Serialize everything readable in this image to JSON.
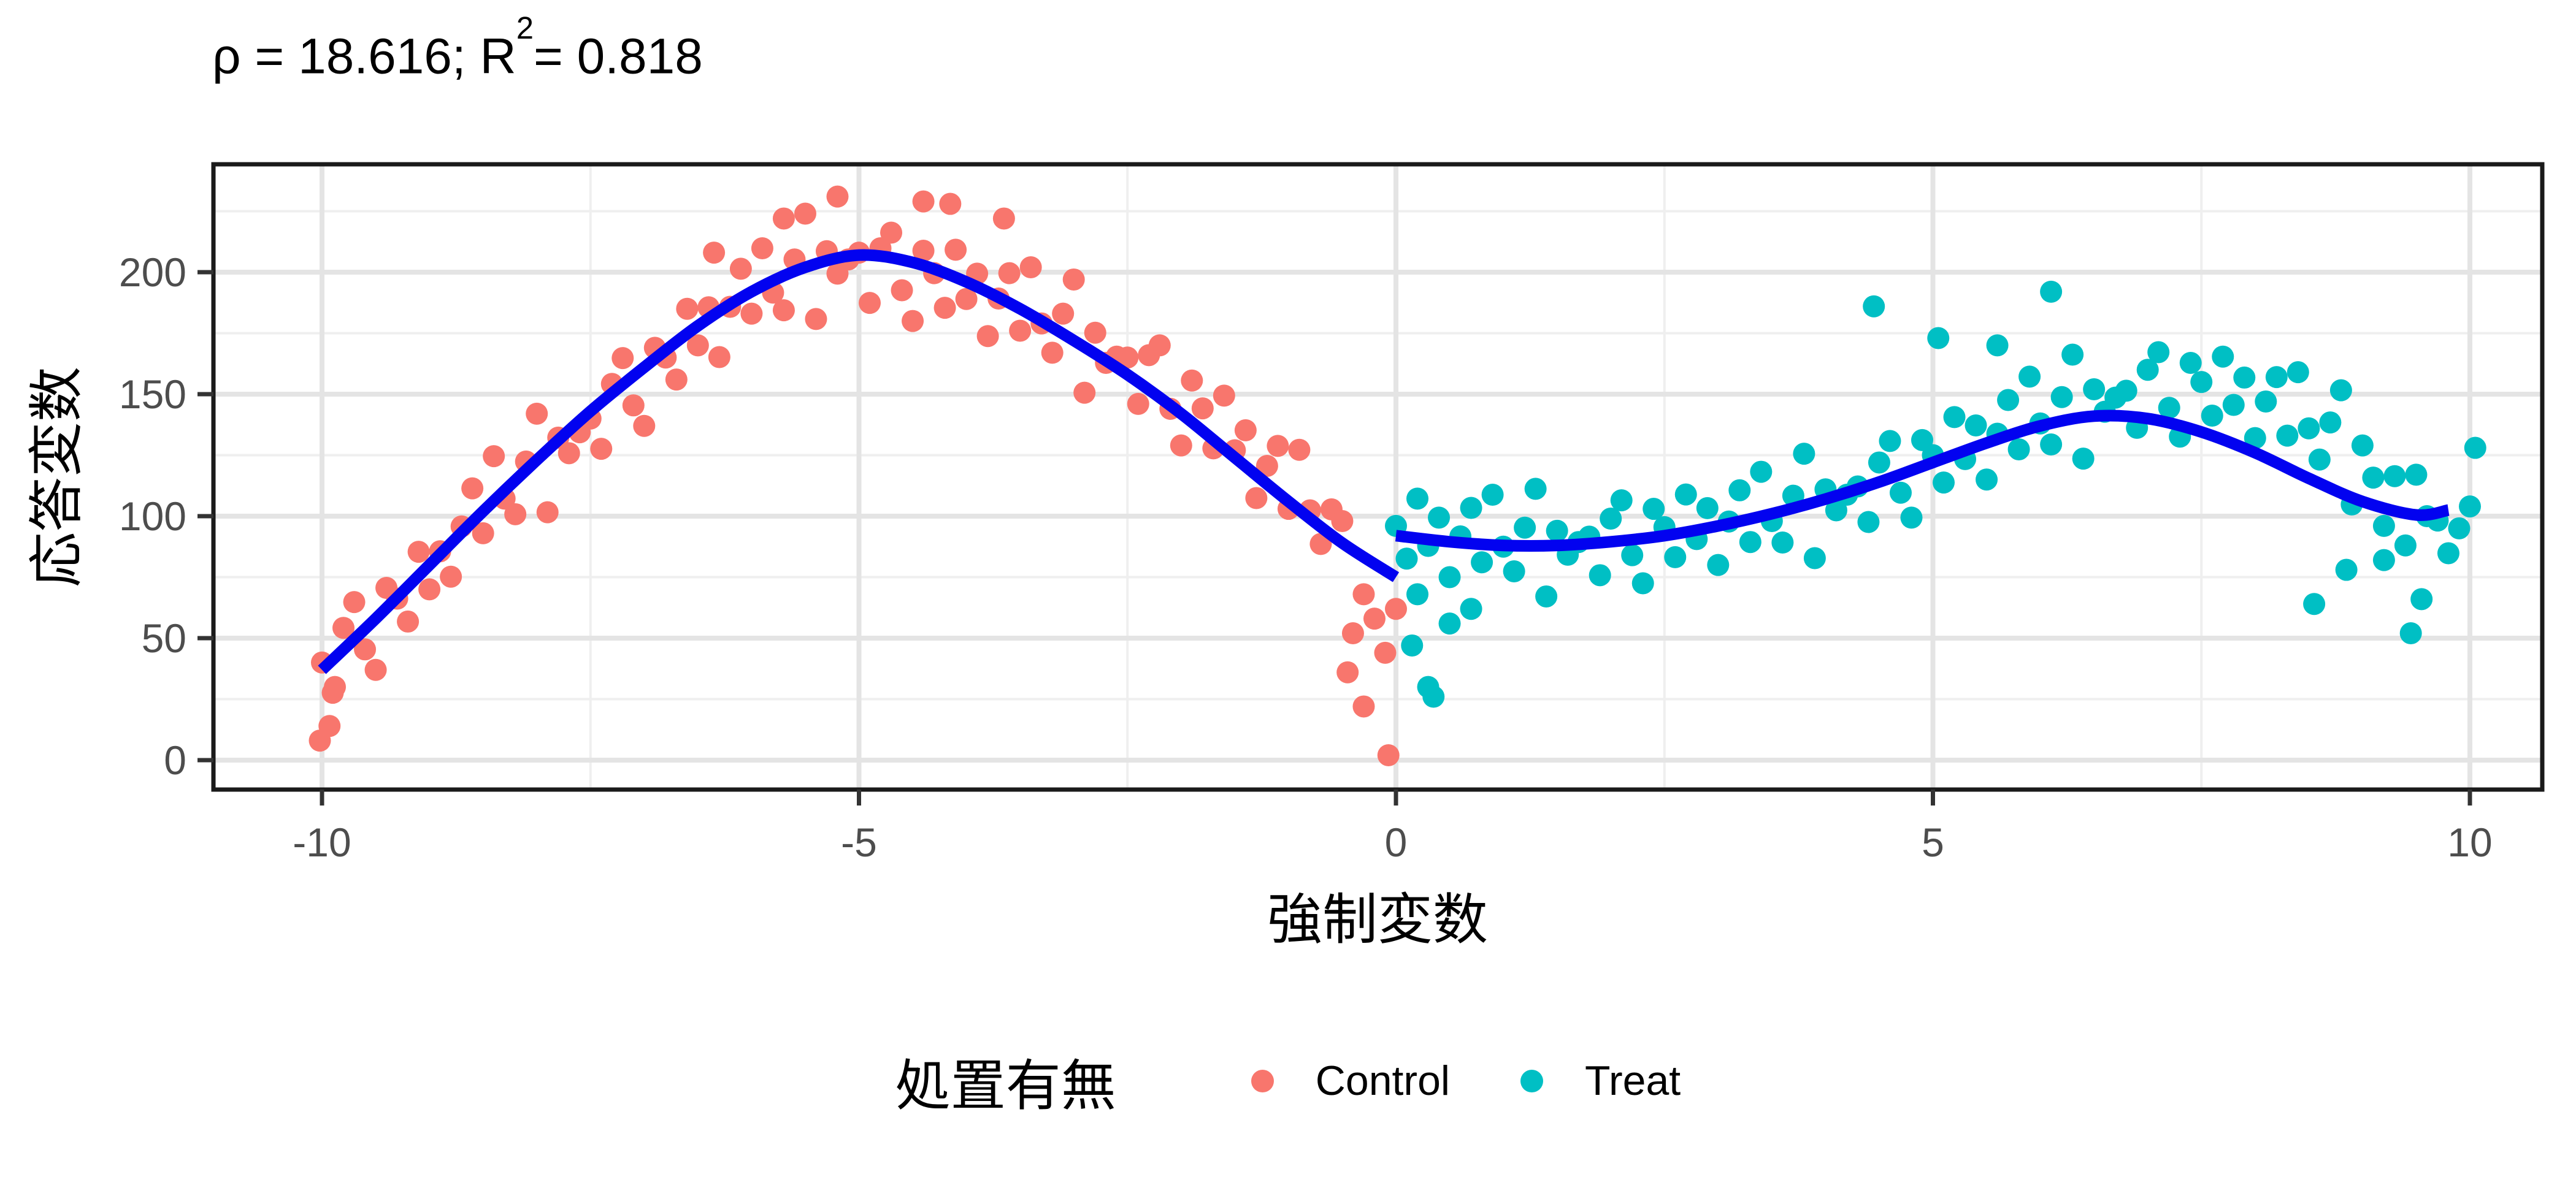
{
  "title": {
    "prefix": "ρ = 18.616; R",
    "sup": "2",
    "suffix": "= 0.818"
  },
  "axes": {
    "x": {
      "label": "強制変数",
      "ticks": [
        -10,
        -5,
        0,
        5,
        10
      ],
      "minor": [
        -7.5,
        -2.5,
        2.5,
        7.5
      ]
    },
    "y": {
      "label": "応答変数",
      "ticks": [
        0,
        50,
        100,
        150,
        200
      ],
      "minor": [
        25,
        75,
        125,
        175,
        225
      ]
    }
  },
  "legend": {
    "title": "処置有無",
    "items": [
      {
        "label": "Control",
        "color": "#F8766D"
      },
      {
        "label": "Treat",
        "color": "#00BFC4"
      }
    ]
  },
  "style": {
    "curve_color": "#0202F0",
    "grid_major": "#E4E4E4",
    "grid_minor": "#EFEFEF",
    "panel_border": "#1a1a1a",
    "tick_color": "#333333",
    "tick_label_color": "#4D4D4D"
  },
  "chart_data": {
    "type": "scatter",
    "title": "ρ = 18.616; R² = 0.818",
    "xlabel": "強制変数",
    "ylabel": "応答変数",
    "xlim": [
      -11.0,
      10.6
    ],
    "ylim": [
      -12,
      244
    ],
    "grid": true,
    "legend_title": "処置有無",
    "legend_position": "bottom",
    "discontinuity_x": 0,
    "rho": 18.616,
    "r_squared": 0.818,
    "series": [
      {
        "name": "Control",
        "kind": "points",
        "color": "#F8766D",
        "x": [
          -10.0,
          -9.9,
          -9.8,
          -9.7,
          -9.6,
          -9.5,
          -9.4,
          -9.3,
          -9.2,
          -9.1,
          -9.0,
          -8.9,
          -8.8,
          -8.7,
          -8.6,
          -8.5,
          -8.4,
          -8.3,
          -8.2,
          -8.1,
          -8.0,
          -7.9,
          -7.8,
          -7.7,
          -7.6,
          -7.5,
          -7.4,
          -7.3,
          -7.2,
          -7.1,
          -7.0,
          -6.9,
          -6.8,
          -6.7,
          -6.6,
          -6.5,
          -6.4,
          -6.3,
          -6.2,
          -6.1,
          -6.0,
          -5.9,
          -5.8,
          -5.7,
          -5.6,
          -5.5,
          -5.4,
          -5.3,
          -5.2,
          -5.1,
          -5.0,
          -4.9,
          -4.8,
          -4.7,
          -4.6,
          -4.5,
          -4.4,
          -4.3,
          -4.2,
          -4.1,
          -4.0,
          -3.9,
          -3.8,
          -3.7,
          -3.6,
          -3.5,
          -3.4,
          -3.3,
          -3.2,
          -3.1,
          -3.0,
          -2.9,
          -2.8,
          -2.7,
          -2.6,
          -2.5,
          -2.4,
          -2.3,
          -2.2,
          -2.1,
          -2.0,
          -1.9,
          -1.8,
          -1.7,
          -1.6,
          -1.5,
          -1.4,
          -1.3,
          -1.2,
          -1.1,
          -1.0,
          -0.9,
          -0.8,
          -0.7,
          -0.6,
          -0.5,
          -0.4,
          -0.3,
          -0.2,
          -0.1,
          0.0,
          -10.02,
          -9.93,
          -9.88,
          -6.35,
          -5.7,
          -5.2,
          -4.4,
          -4.15,
          -3.65,
          -0.45,
          -0.3,
          -0.07
        ],
        "y": [
          40,
          27.6,
          54.2,
          64.8,
          45.4,
          37,
          70.6,
          66.2,
          56.8,
          85.4,
          70,
          85.6,
          75.2,
          95.8,
          111.4,
          93,
          124.6,
          107.2,
          100.8,
          122.4,
          142,
          101.6,
          132.2,
          125.8,
          134.4,
          140,
          127.6,
          154.2,
          164.8,
          145.4,
          137,
          169,
          165,
          156,
          185,
          170,
          185.6,
          165.2,
          185.8,
          201.4,
          183,
          209.8,
          191.6,
          184.4,
          205.2,
          224,
          180.8,
          208.6,
          199.4,
          205.2,
          208,
          187.4,
          209.8,
          216.2,
          192.6,
          180,
          208.8,
          199.6,
          185.4,
          209.2,
          189,
          199.4,
          173.8,
          189.2,
          199.6,
          176,
          202,
          179,
          167,
          183,
          197,
          150.6,
          175.2,
          162.8,
          165.4,
          165,
          146,
          166,
          170,
          144,
          129,
          155.6,
          144.2,
          127.8,
          149.4,
          127,
          135.2,
          107.4,
          120.6,
          128.8,
          103,
          127.2,
          102.4,
          88.6,
          102.8,
          98,
          52,
          68,
          58,
          44,
          62,
          8,
          14,
          30,
          208,
          222,
          231,
          229,
          228,
          222,
          36,
          22,
          2
        ]
      },
      {
        "name": "Treat",
        "kind": "points",
        "color": "#00BFC4",
        "x": [
          0.0,
          0.1,
          0.2,
          0.3,
          0.4,
          0.5,
          0.6,
          0.7,
          0.8,
          0.9,
          1.0,
          1.1,
          1.2,
          1.3,
          1.4,
          1.5,
          1.6,
          1.7,
          1.8,
          1.9,
          2.0,
          2.1,
          2.2,
          2.3,
          2.4,
          2.5,
          2.6,
          2.7,
          2.8,
          2.9,
          3.0,
          3.1,
          3.2,
          3.3,
          3.4,
          3.5,
          3.6,
          3.7,
          3.8,
          3.9,
          4.0,
          4.1,
          4.2,
          4.3,
          4.4,
          4.5,
          4.6,
          4.7,
          4.8,
          4.9,
          5.0,
          5.1,
          5.2,
          5.3,
          5.4,
          5.5,
          5.6,
          5.7,
          5.8,
          5.9,
          6.0,
          6.1,
          6.2,
          6.3,
          6.4,
          6.5,
          6.6,
          6.7,
          6.8,
          6.9,
          7.0,
          7.1,
          7.2,
          7.3,
          7.4,
          7.5,
          7.6,
          7.7,
          7.8,
          7.9,
          8.0,
          8.1,
          8.2,
          8.3,
          8.4,
          8.5,
          8.6,
          8.7,
          8.8,
          8.9,
          9.0,
          9.1,
          9.2,
          9.3,
          9.4,
          9.5,
          9.6,
          9.7,
          9.8,
          9.9,
          10.0,
          0.15,
          0.2,
          0.3,
          0.35,
          0.5,
          0.7,
          4.45,
          5.05,
          5.6,
          6.1,
          8.55,
          8.85,
          9.2,
          9.45,
          9.55,
          10.05
        ],
        "y": [
          96,
          82.6,
          107.2,
          87.8,
          99.4,
          75,
          91.7,
          103.4,
          81.1,
          108.8,
          87.5,
          77.4,
          95.3,
          111.2,
          67.1,
          94,
          84.2,
          89.4,
          91.6,
          75.8,
          99,
          106.5,
          84,
          72.5,
          103,
          95.5,
          83.2,
          108.9,
          90.6,
          103.3,
          80,
          97.8,
          110.6,
          89.4,
          118.2,
          98,
          89.2,
          108.4,
          125.6,
          82.8,
          111,
          102.4,
          108.8,
          112.2,
          97.6,
          122,
          130.8,
          109.6,
          99.4,
          131.2,
          125,
          113.8,
          140.6,
          123.4,
          137.2,
          115,
          133.8,
          147.6,
          127.4,
          157.2,
          138,
          129.4,
          148.8,
          166.2,
          123.6,
          152,
          142.8,
          148.6,
          151.4,
          136.2,
          160,
          167.2,
          144.4,
          132.6,
          162.8,
          155,
          141.2,
          165.4,
          145.6,
          156.8,
          132,
          147,
          157,
          133,
          159,
          136,
          123.2,
          138.4,
          151.6,
          104.8,
          129,
          115.8,
          96,
          116.4,
          88,
          117,
          100,
          98.2,
          84.8,
          95,
          104,
          47,
          68,
          30,
          26,
          56,
          62,
          186,
          173,
          170,
          192,
          64,
          78,
          82,
          52,
          66,
          128
        ]
      },
      {
        "name": "fit-control",
        "kind": "line",
        "color": "#0202F0",
        "x": [
          -10,
          -9.5,
          -9,
          -8.5,
          -8,
          -7.5,
          -7,
          -6.5,
          -6,
          -5.5,
          -5,
          -4.5,
          -4,
          -3.5,
          -3,
          -2.5,
          -2,
          -1.5,
          -1,
          -0.5,
          0
        ],
        "y": [
          37,
          58,
          80,
          102,
          123,
          143,
          161,
          178,
          192,
          202,
          207,
          204,
          196,
          185,
          172,
          158,
          142,
          124,
          106,
          89,
          75
        ]
      },
      {
        "name": "fit-treat",
        "kind": "line",
        "color": "#0202F0",
        "x": [
          0,
          0.5,
          1,
          1.5,
          2,
          2.5,
          3,
          3.5,
          4,
          4.5,
          5,
          5.5,
          6,
          6.5,
          7,
          7.5,
          8,
          8.5,
          9,
          9.5,
          9.8
        ],
        "y": [
          92,
          89.5,
          88,
          88,
          89.5,
          92,
          96,
          101,
          107,
          114,
          122,
          130,
          137,
          141,
          140,
          134.5,
          126,
          115.5,
          106,
          100.5,
          102.5
        ]
      }
    ]
  }
}
